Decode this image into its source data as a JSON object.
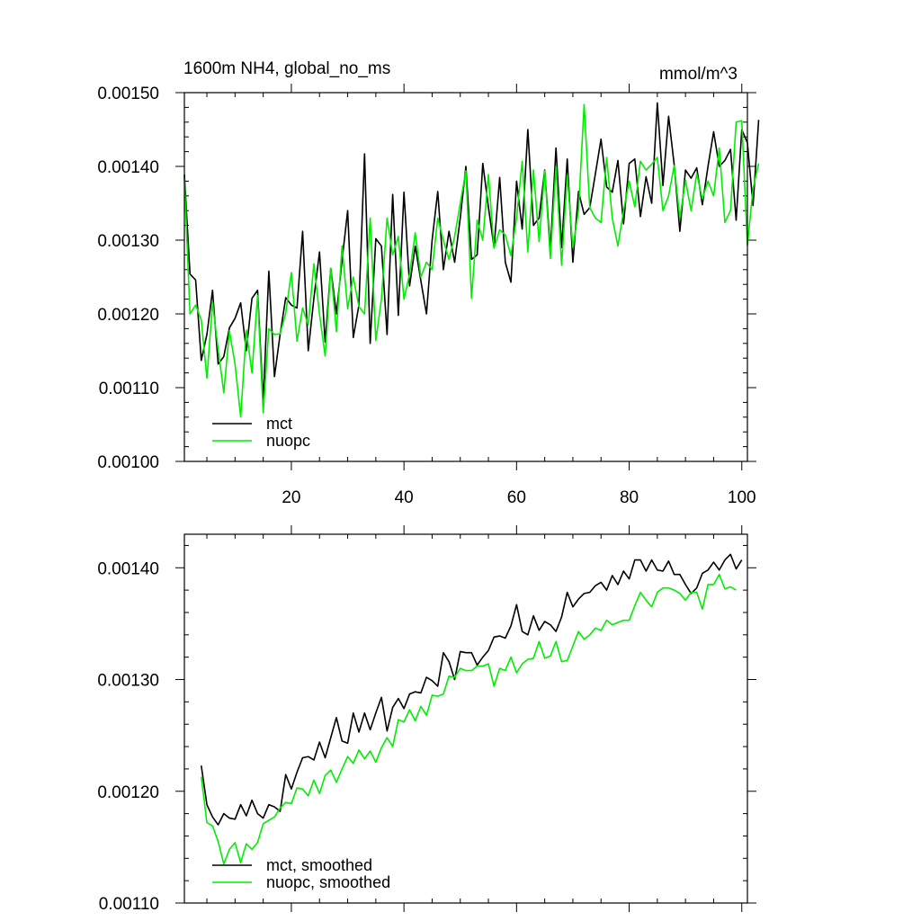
{
  "chart_data": [
    {
      "type": "line",
      "title": "1600m NH4, global_no_ms",
      "units": "mmol/m^3",
      "xlim": [
        1,
        101
      ],
      "ylim": [
        0.001,
        0.0015
      ],
      "xticks": [
        20,
        40,
        60,
        80,
        100
      ],
      "yticks": [
        0.001,
        0.0011,
        0.0012,
        0.0013,
        0.0014,
        0.0015
      ],
      "ytick_labels": [
        "0.00100",
        "0.00110",
        "0.00120",
        "0.00130",
        "0.00140",
        "0.00150"
      ],
      "legend": "bottom-left",
      "x_start": 1,
      "series": [
        {
          "name": "mct",
          "color": "#000000",
          "values": [
            0.001389,
            0.001254,
            0.001246,
            0.001137,
            0.001172,
            0.001232,
            0.001132,
            0.001142,
            0.001181,
            0.001194,
            0.001215,
            0.00115,
            0.001221,
            0.001232,
            0.001081,
            0.001258,
            0.001115,
            0.001172,
            0.001222,
            0.001212,
            0.001208,
            0.001312,
            0.00115,
            0.001221,
            0.001284,
            0.001162,
            0.001262,
            0.0012,
            0.001272,
            0.00134,
            0.001168,
            0.001212,
            0.001417,
            0.00116,
            0.001302,
            0.001292,
            0.001172,
            0.001362,
            0.001198,
            0.001365,
            0.001238,
            0.001292,
            0.001245,
            0.0012,
            0.0013,
            0.001366,
            0.00126,
            0.001312,
            0.00127,
            0.00133,
            0.0014,
            0.001274,
            0.00128,
            0.001404,
            0.001345,
            0.00129,
            0.001385,
            0.00127,
            0.001243,
            0.00138,
            0.001315,
            0.00145,
            0.00132,
            0.00133,
            0.001395,
            0.001286,
            0.001425,
            0.00129,
            0.00141,
            0.00127,
            0.001366,
            0.001335,
            0.001344,
            0.00139,
            0.001437,
            0.001372,
            0.001365,
            0.001408,
            0.001322,
            0.001404,
            0.00141,
            0.001332,
            0.001386,
            0.00135,
            0.001486,
            0.001374,
            0.001468,
            0.001402,
            0.001312,
            0.001395,
            0.001384,
            0.001398,
            0.001348,
            0.0014,
            0.001447,
            0.0014,
            0.001408,
            0.001423,
            0.001327,
            0.00145,
            0.001432,
            0.001347,
            0.001463
          ]
        },
        {
          "name": "nuopc",
          "color": "#00ee00",
          "values": [
            0.001384,
            0.0012,
            0.001212,
            0.001192,
            0.001113,
            0.001215,
            0.001152,
            0.001093,
            0.001177,
            0.001132,
            0.00106,
            0.001178,
            0.00112,
            0.001225,
            0.001066,
            0.00118,
            0.001172,
            0.001173,
            0.001201,
            0.001256,
            0.001163,
            0.001208,
            0.001185,
            0.001268,
            0.0012,
            0.001143,
            0.001262,
            0.001176,
            0.001292,
            0.001207,
            0.00125,
            0.00121,
            0.0012,
            0.00133,
            0.001164,
            0.00122,
            0.00133,
            0.00128,
            0.001305,
            0.00122,
            0.001254,
            0.00131,
            0.00125,
            0.00127,
            0.00126,
            0.00133,
            0.0013,
            0.001274,
            0.001305,
            0.00135,
            0.001394,
            0.001221,
            0.001327,
            0.0013,
            0.001389,
            0.001289,
            0.001314,
            0.001307,
            0.001279,
            0.00133,
            0.001407,
            0.001284,
            0.001395,
            0.001298,
            0.001394,
            0.001275,
            0.0014,
            0.001266,
            0.001388,
            0.00129,
            0.00134,
            0.001484,
            0.001344,
            0.00133,
            0.001324,
            0.001412,
            0.00133,
            0.001292,
            0.00134,
            0.00138,
            0.001345,
            0.001407,
            0.001395,
            0.001403,
            0.001412,
            0.00134,
            0.00136,
            0.001401,
            0.00133,
            0.001381,
            0.00134,
            0.00139,
            0.001356,
            0.00138,
            0.00136,
            0.001425,
            0.001324,
            0.00134,
            0.00146,
            0.001462,
            0.001293,
            0.00137,
            0.001404
          ]
        }
      ]
    },
    {
      "type": "line",
      "xlim": [
        1,
        101
      ],
      "ylim": [
        0.0011,
        0.00143
      ],
      "xticks": [
        20,
        40,
        60,
        80,
        100
      ],
      "yticks": [
        0.0011,
        0.0012,
        0.0013,
        0.0014
      ],
      "ytick_labels": [
        "0.00110",
        "0.00120",
        "0.00130",
        "0.00140"
      ],
      "legend": "bottom-left",
      "x_start": 4,
      "series": [
        {
          "name": "mct, smoothed",
          "color": "#000000",
          "values": [
            0.001223,
            0.001188,
            0.001177,
            0.00117,
            0.00118,
            0.001176,
            0.001175,
            0.001188,
            0.001178,
            0.001192,
            0.00118,
            0.001176,
            0.001188,
            0.001186,
            0.001182,
            0.001215,
            0.001202,
            0.001217,
            0.00123,
            0.001231,
            0.001228,
            0.001244,
            0.00123,
            0.001248,
            0.001266,
            0.001245,
            0.001243,
            0.00127,
            0.001253,
            0.00127,
            0.001255,
            0.00127,
            0.001284,
            0.001254,
            0.001275,
            0.001283,
            0.001274,
            0.001287,
            0.001289,
            0.001288,
            0.001302,
            0.001299,
            0.001294,
            0.001324,
            0.001316,
            0.0013,
            0.001325,
            0.001324,
            0.001324,
            0.001313,
            0.00132,
            0.001326,
            0.001338,
            0.001339,
            0.001337,
            0.001348,
            0.001367,
            0.001343,
            0.00134,
            0.001357,
            0.001344,
            0.001352,
            0.001349,
            0.001343,
            0.001356,
            0.001378,
            0.001365,
            0.001372,
            0.001377,
            0.001378,
            0.001384,
            0.001387,
            0.00138,
            0.001393,
            0.001385,
            0.001397,
            0.00139,
            0.001407,
            0.001407,
            0.001397,
            0.001407,
            0.001398,
            0.001397,
            0.001406,
            0.001394,
            0.001394,
            0.001385,
            0.001377,
            0.001382,
            0.001395,
            0.001398,
            0.001405,
            0.001398,
            0.001407,
            0.001412,
            0.001399,
            0.001407
          ]
        },
        {
          "name": "nuopc, smoothed",
          "color": "#00ee00",
          "values": [
            0.001213,
            0.001172,
            0.001169,
            0.001155,
            0.001135,
            0.001148,
            0.001154,
            0.001136,
            0.001153,
            0.001148,
            0.001154,
            0.001171,
            0.001174,
            0.001177,
            0.001185,
            0.00119,
            0.001189,
            0.001203,
            0.001202,
            0.001196,
            0.00121,
            0.001198,
            0.001214,
            0.001219,
            0.001208,
            0.00122,
            0.001231,
            0.001225,
            0.001237,
            0.001229,
            0.001236,
            0.001226,
            0.001239,
            0.001248,
            0.00124,
            0.001264,
            0.001262,
            0.001273,
            0.001263,
            0.001276,
            0.001268,
            0.001286,
            0.001285,
            0.001287,
            0.001303,
            0.001302,
            0.00131,
            0.001308,
            0.001308,
            0.001312,
            0.001312,
            0.001314,
            0.001294,
            0.00131,
            0.001308,
            0.00132,
            0.001306,
            0.001314,
            0.001318,
            0.001319,
            0.001334,
            0.001319,
            0.001321,
            0.001334,
            0.001316,
            0.001317,
            0.00133,
            0.001343,
            0.001336,
            0.00134,
            0.001346,
            0.001344,
            0.001353,
            0.001349,
            0.001351,
            0.001353,
            0.001353,
            0.001366,
            0.001378,
            0.001371,
            0.001365,
            0.001378,
            0.001382,
            0.001382,
            0.00138,
            0.001377,
            0.001371,
            0.001378,
            0.001378,
            0.001363,
            0.001385,
            0.001385,
            0.001394,
            0.001381,
            0.001383,
            0.00138
          ]
        }
      ]
    }
  ]
}
